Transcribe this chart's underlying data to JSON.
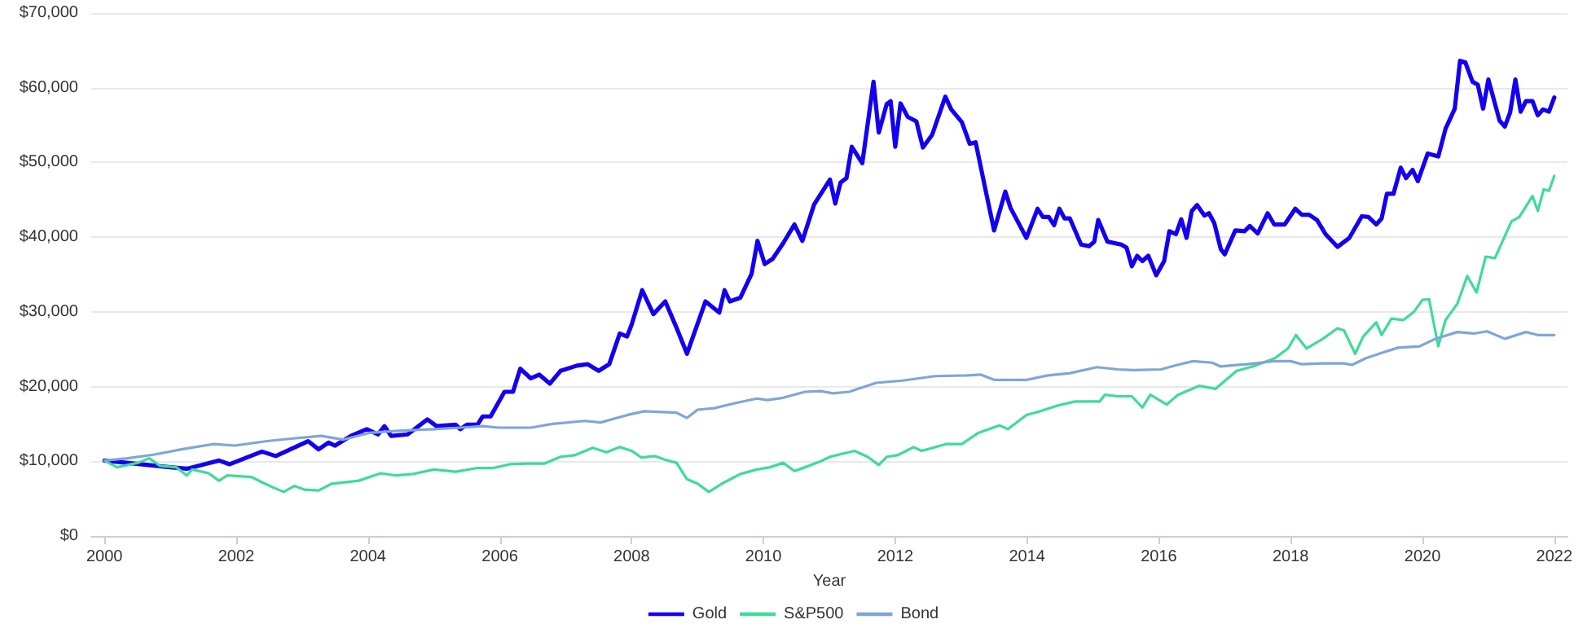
{
  "chart_data": {
    "type": "line",
    "xlabel": "Year",
    "xlim": [
      1999.8,
      2022.2
    ],
    "xticks": [
      2000,
      2002,
      2004,
      2006,
      2008,
      2010,
      2012,
      2014,
      2016,
      2018,
      2020,
      2022
    ],
    "ylim": [
      0,
      70000
    ],
    "yticks": [
      {
        "value": 0,
        "label": "$0"
      },
      {
        "value": 10000,
        "label": "$10,000"
      },
      {
        "value": 20000,
        "label": "$20,000"
      },
      {
        "value": 30000,
        "label": "$30,000"
      },
      {
        "value": 40000,
        "label": "$40,000"
      },
      {
        "value": 50000,
        "label": "$50,000"
      },
      {
        "value": 60000,
        "label": "$60,000"
      },
      {
        "value": 70000,
        "label": "$70,000"
      }
    ],
    "grid": "y",
    "legend": "bottom",
    "marker": "none",
    "line_style": "solid",
    "series": [
      {
        "name": "Gold",
        "color": "#1400f0",
        "x": [
          2000,
          2001.0,
          2001.25,
          2001.74,
          2001.9,
          2002.39,
          2002.6,
          2003.09,
          2003.25,
          2003.4,
          2003.5,
          2003.74,
          2003.98,
          2004.15,
          2004.25,
          2004.35,
          2004.6,
          2004.9,
          2005.04,
          2005.33,
          2005.4,
          2005.5,
          2005.66,
          2005.74,
          2005.86,
          2006.07,
          2006.2,
          2006.31,
          2006.47,
          2006.6,
          2006.76,
          2006.92,
          2007.17,
          2007.33,
          2007.5,
          2007.66,
          2007.82,
          2007.93,
          2008.0,
          2008.16,
          2008.33,
          2008.51,
          2008.68,
          2008.84,
          2009.12,
          2009.33,
          2009.41,
          2009.49,
          2009.65,
          2009.82,
          2009.91,
          2010.02,
          2010.14,
          2010.3,
          2010.47,
          2010.59,
          2010.77,
          2011.01,
          2011.09,
          2011.17,
          2011.26,
          2011.34,
          2011.5,
          2011.67,
          2011.75,
          2011.87,
          2011.93,
          2012.0,
          2012.08,
          2012.19,
          2012.32,
          2012.42,
          2012.56,
          2012.76,
          2012.85,
          2013.01,
          2013.13,
          2013.22,
          2013.38,
          2013.5,
          2013.67,
          2013.75,
          2013.99,
          2014.16,
          2014.24,
          2014.33,
          2014.41,
          2014.49,
          2014.57,
          2014.65,
          2014.82,
          2014.94,
          2015.02,
          2015.08,
          2015.22,
          2015.43,
          2015.51,
          2015.59,
          2015.67,
          2015.75,
          2015.84,
          2015.96,
          2016.08,
          2016.16,
          2016.26,
          2016.34,
          2016.42,
          2016.5,
          2016.58,
          2016.69,
          2016.76,
          2016.84,
          2016.94,
          2017.0,
          2017.16,
          2017.3,
          2017.38,
          2017.5,
          2017.65,
          2017.75,
          2017.91,
          2018.07,
          2018.17,
          2018.28,
          2018.4,
          2018.53,
          2018.71,
          2018.89,
          2019.08,
          2019.18,
          2019.3,
          2019.38,
          2019.46,
          2019.56,
          2019.67,
          2019.75,
          2019.85,
          2019.93,
          2020.08,
          2020.24,
          2020.35,
          2020.49,
          2020.57,
          2020.65,
          2020.76,
          2020.84,
          2020.92,
          2021.0,
          2021.17,
          2021.25,
          2021.33,
          2021.41,
          2021.49,
          2021.57,
          2021.67,
          2021.75,
          2021.83,
          2021.92,
          2022.0
        ],
        "values": [
          10100,
          9200,
          9000,
          10100,
          9600,
          11300,
          10700,
          12700,
          11600,
          12500,
          12100,
          13400,
          14300,
          13600,
          14700,
          13400,
          13600,
          15600,
          14700,
          14900,
          14300,
          14900,
          14900,
          16000,
          16000,
          19300,
          19300,
          22400,
          21100,
          21600,
          20400,
          22100,
          22800,
          23000,
          22100,
          23000,
          27100,
          26700,
          28300,
          32900,
          29700,
          31400,
          27900,
          24400,
          31400,
          29900,
          32900,
          31400,
          31900,
          35100,
          39500,
          36400,
          37100,
          39200,
          41700,
          39500,
          44400,
          47700,
          44500,
          47300,
          47900,
          52100,
          49900,
          60800,
          54000,
          57800,
          58200,
          52100,
          57900,
          56100,
          55500,
          52000,
          53700,
          58800,
          57100,
          55400,
          52500,
          52700,
          45900,
          40900,
          46100,
          43900,
          39900,
          43800,
          42700,
          42700,
          41600,
          43800,
          42500,
          42500,
          39000,
          38800,
          39400,
          42300,
          39400,
          39000,
          38600,
          36100,
          37500,
          36800,
          37500,
          34900,
          36800,
          40800,
          40400,
          42400,
          39900,
          43500,
          44300,
          42900,
          43200,
          41900,
          38400,
          37700,
          40900,
          40800,
          41500,
          40500,
          43200,
          41700,
          41700,
          43800,
          43000,
          43000,
          42300,
          40400,
          38700,
          39900,
          42800,
          42700,
          41700,
          42500,
          45800,
          45800,
          49300,
          47900,
          49000,
          47500,
          51200,
          50800,
          54500,
          57200,
          63600,
          63400,
          60800,
          60400,
          57200,
          61100,
          55600,
          54800,
          56700,
          61100,
          56800,
          58200,
          58200,
          56300,
          57100,
          56800,
          58700
        ]
      },
      {
        "name": "S&P500",
        "color": "#3ddc97",
        "x": [
          2000,
          2000.19,
          2000.51,
          2000.68,
          2000.84,
          2001.09,
          2001.25,
          2001.33,
          2001.58,
          2001.74,
          2001.86,
          2002.23,
          2002.39,
          2002.56,
          2002.72,
          2002.88,
          2003.04,
          2003.25,
          2003.45,
          2003.86,
          2004.19,
          2004.43,
          2004.68,
          2005.0,
          2005.33,
          2005.66,
          2005.9,
          2006.15,
          2006.39,
          2006.68,
          2006.92,
          2007.13,
          2007.41,
          2007.62,
          2007.82,
          2008.0,
          2008.15,
          2008.35,
          2008.51,
          2008.68,
          2008.84,
          2009.0,
          2009.17,
          2009.41,
          2009.65,
          2009.9,
          2010.1,
          2010.3,
          2010.47,
          2010.63,
          2010.87,
          2011.01,
          2011.38,
          2011.58,
          2011.75,
          2011.87,
          2012.03,
          2012.28,
          2012.4,
          2012.77,
          2013.01,
          2013.26,
          2013.58,
          2013.71,
          2013.99,
          2014.2,
          2014.48,
          2014.73,
          2015.1,
          2015.18,
          2015.38,
          2015.59,
          2015.75,
          2015.87,
          2016.12,
          2016.29,
          2016.61,
          2016.86,
          2017.18,
          2017.43,
          2017.76,
          2017.96,
          2018.08,
          2018.24,
          2018.49,
          2018.71,
          2018.81,
          2018.98,
          2019.1,
          2019.3,
          2019.38,
          2019.53,
          2019.71,
          2019.87,
          2020.0,
          2020.1,
          2020.24,
          2020.35,
          2020.53,
          2020.68,
          2020.82,
          2020.96,
          2021.1,
          2021.35,
          2021.47,
          2021.67,
          2021.75,
          2021.84,
          2021.92,
          2022.0
        ],
        "values": [
          10100,
          9200,
          9800,
          10400,
          9400,
          9200,
          8100,
          8900,
          8400,
          7400,
          8100,
          7900,
          7200,
          6500,
          5900,
          6700,
          6200,
          6100,
          7000,
          7400,
          8400,
          8100,
          8300,
          8900,
          8600,
          9100,
          9100,
          9600,
          9700,
          9700,
          10600,
          10800,
          11800,
          11200,
          11900,
          11400,
          10500,
          10700,
          10200,
          9800,
          7600,
          7000,
          5900,
          7200,
          8300,
          8900,
          9200,
          9800,
          8700,
          9200,
          10000,
          10600,
          11400,
          10600,
          9500,
          10600,
          10800,
          11900,
          11400,
          12300,
          12300,
          13800,
          14800,
          14300,
          16200,
          16700,
          17500,
          18000,
          18000,
          18900,
          18700,
          18700,
          17200,
          18900,
          17600,
          18900,
          20100,
          19700,
          22100,
          22700,
          23800,
          25100,
          26900,
          25100,
          26400,
          27800,
          27500,
          24400,
          26700,
          28600,
          26900,
          29100,
          28900,
          30000,
          31600,
          31700,
          25400,
          28900,
          31100,
          34800,
          32600,
          37400,
          37200,
          42100,
          42700,
          45500,
          43500,
          46400,
          46200,
          48200
        ]
      },
      {
        "name": "Bond",
        "color": "#7fa6d6",
        "x": [
          2000,
          2000.35,
          2000.76,
          2001.17,
          2001.66,
          2001.98,
          2002.47,
          2002.8,
          2003.29,
          2003.62,
          2004.02,
          2004.51,
          2005.0,
          2005.41,
          2005.74,
          2005.98,
          2006.47,
          2006.8,
          2007.29,
          2007.53,
          2007.94,
          2008.19,
          2008.68,
          2008.84,
          2009.0,
          2009.25,
          2009.58,
          2009.9,
          2010.06,
          2010.3,
          2010.63,
          2010.87,
          2011.05,
          2011.3,
          2011.71,
          2012.11,
          2012.6,
          2013.09,
          2013.3,
          2013.5,
          2013.75,
          2013.99,
          2014.32,
          2014.65,
          2015.06,
          2015.38,
          2015.62,
          2016.03,
          2016.28,
          2016.52,
          2016.81,
          2016.93,
          2017.34,
          2017.75,
          2018.0,
          2018.16,
          2018.48,
          2018.81,
          2018.93,
          2019.14,
          2019.38,
          2019.63,
          2019.96,
          2020.2,
          2020.53,
          2020.78,
          2020.98,
          2021.25,
          2021.57,
          2021.75,
          2022.0
        ],
        "values": [
          10100,
          10400,
          10900,
          11600,
          12300,
          12100,
          12700,
          13000,
          13400,
          12900,
          13800,
          14100,
          14300,
          14500,
          14700,
          14500,
          14500,
          15000,
          15400,
          15200,
          16200,
          16700,
          16500,
          15800,
          16900,
          17100,
          17800,
          18400,
          18200,
          18500,
          19300,
          19400,
          19100,
          19300,
          20500,
          20800,
          21400,
          21500,
          21600,
          20900,
          20900,
          20900,
          21500,
          21800,
          22600,
          22300,
          22200,
          22300,
          22900,
          23400,
          23200,
          22700,
          23000,
          23400,
          23400,
          23000,
          23100,
          23100,
          22900,
          23800,
          24500,
          25200,
          25400,
          26400,
          27300,
          27100,
          27400,
          26400,
          27300,
          26900,
          26900
        ]
      }
    ]
  }
}
